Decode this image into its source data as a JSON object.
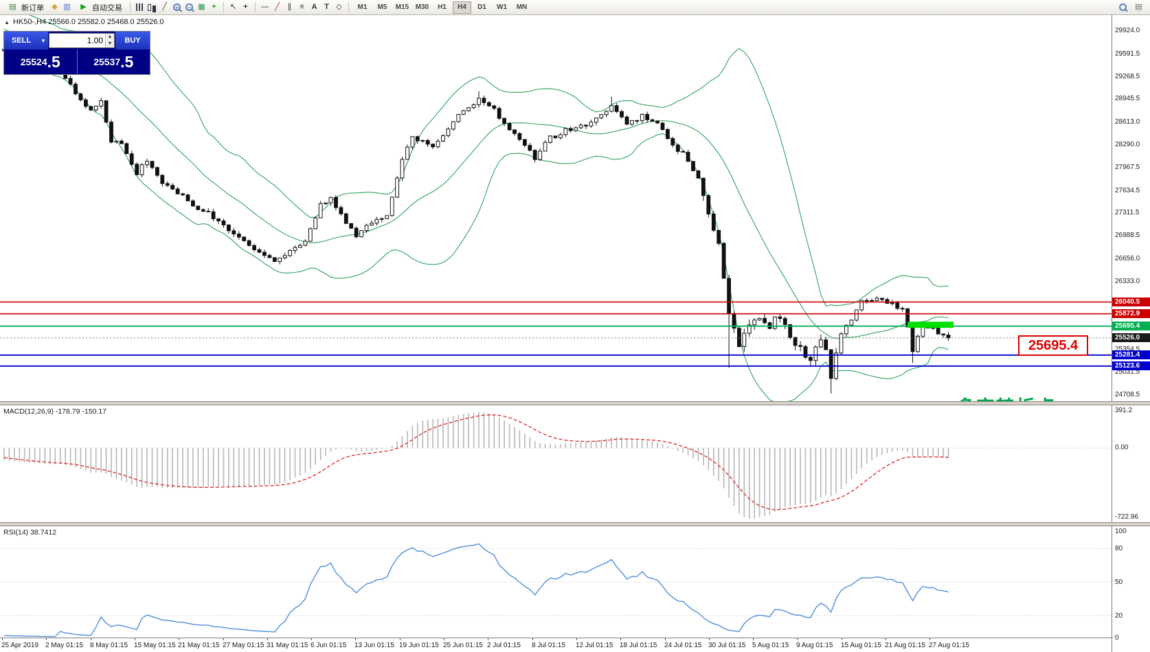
{
  "toolbar": {
    "new_order_label": "新订单",
    "autotrade_label": "自动交易",
    "timeframes": [
      "M1",
      "M5",
      "M15",
      "M30",
      "H1",
      "H4",
      "D1",
      "W1",
      "MN"
    ],
    "active_timeframe": "H4"
  },
  "chart": {
    "title": "HK50-,H4 25566.0 25582.0 25468.0 25526.0",
    "symbol": "HK50-",
    "period": "H4",
    "open": "25566.0",
    "high": "25582.0",
    "low": "25468.0",
    "close": "25526.0"
  },
  "trade_panel": {
    "sell_label": "SELL",
    "buy_label": "BUY",
    "volume": "1.00",
    "sell_price_main": "25524",
    "sell_price_frac": ".5",
    "buy_price_main": "25537",
    "buy_price_frac": ".5"
  },
  "price_axis": {
    "ticks": [
      "29924.0",
      "29591.5",
      "29268.5",
      "28945.5",
      "28613.0",
      "28290.0",
      "27967.5",
      "27634.5",
      "27311.5",
      "26988.5",
      "26656.0",
      "26333.0",
      "25354.5",
      "25031.5",
      "24708.5"
    ],
    "lines": [
      {
        "price": 26040.5,
        "label": "26040.5",
        "color": "#cc0000",
        "width": 1.6
      },
      {
        "price": 25872.9,
        "label": "25872.9",
        "color": "#cc0000",
        "width": 1.6
      },
      {
        "price": 25695.4,
        "label": "25695.4",
        "color": "#00b050",
        "width": 1.8
      },
      {
        "price": 25281.4,
        "label": "25281.4",
        "color": "#0000cc",
        "width": 1.8
      },
      {
        "price": 25123.6,
        "label": "25123.6",
        "color": "#0000cc",
        "width": 1.8
      }
    ],
    "current": {
      "price": 25526.0,
      "label": "25526.0",
      "color": "#1a1a1a"
    }
  },
  "annotations": {
    "big_price_label": "25695.4",
    "big_price_color": "#e00000",
    "turning_point_text": "多空转折点",
    "turning_point_color": "#00a74a",
    "green_segment": {
      "price": 25695.4,
      "from_candle": 177,
      "to_candle": 186,
      "color": "#00e000"
    }
  },
  "macd": {
    "label": "MACD(12,26,9) -178.79 -150.17",
    "axis_max": "391.2",
    "axis_zero": "0.00",
    "axis_min": "-722.96"
  },
  "rsi": {
    "label": "RSI(14) 38.7412",
    "axis": [
      "100",
      "80",
      "50",
      "20",
      "0"
    ],
    "levels": [
      80,
      50,
      20
    ]
  },
  "time_axis": [
    "25 Apr 2019",
    "2 May 01:15",
    "8 May 01:15",
    "15 May 01:15",
    "21 May 01:15",
    "27 May 01:15",
    "31 May 01:15",
    "6 Jun 01:15",
    "13 Jun 01:15",
    "19 Jun 01:15",
    "25 Jun 01:15",
    "2 Jul 01:15",
    "8 Jul 01:15",
    "12 Jul 01:15",
    "18 Jul 01:15",
    "24 Jul 01:15",
    "30 Jul 01:15",
    "5 Aug 01:15",
    "9 Aug 01:15",
    "15 Aug 01:15",
    "21 Aug 01:15",
    "27 Aug 01:15"
  ],
  "chart_data": {
    "type": "candlestick",
    "symbol": "HK50",
    "timeframe": "H4",
    "price_range": [
      24620,
      30150
    ],
    "candle_count": 186,
    "last_close": 25526.0,
    "close_anchors": [
      [
        0,
        29620
      ],
      [
        6,
        29480
      ],
      [
        11,
        29340
      ],
      [
        14,
        29040
      ],
      [
        17,
        28760
      ],
      [
        19,
        28900
      ],
      [
        21,
        28300
      ],
      [
        23,
        28340
      ],
      [
        26,
        27880
      ],
      [
        28,
        28080
      ],
      [
        31,
        27760
      ],
      [
        34,
        27620
      ],
      [
        37,
        27400
      ],
      [
        40,
        27310
      ],
      [
        43,
        27120
      ],
      [
        46,
        26960
      ],
      [
        50,
        26760
      ],
      [
        53,
        26630
      ],
      [
        56,
        26790
      ],
      [
        59,
        26900
      ],
      [
        62,
        27440
      ],
      [
        64,
        27540
      ],
      [
        67,
        27160
      ],
      [
        69,
        26990
      ],
      [
        72,
        27190
      ],
      [
        75,
        27260
      ],
      [
        78,
        28080
      ],
      [
        80,
        28410
      ],
      [
        84,
        28260
      ],
      [
        87,
        28540
      ],
      [
        90,
        28790
      ],
      [
        93,
        28940
      ],
      [
        96,
        28800
      ],
      [
        99,
        28510
      ],
      [
        102,
        28260
      ],
      [
        104,
        28110
      ],
      [
        107,
        28390
      ],
      [
        110,
        28500
      ],
      [
        113,
        28550
      ],
      [
        116,
        28650
      ],
      [
        119,
        28840
      ],
      [
        122,
        28610
      ],
      [
        125,
        28700
      ],
      [
        128,
        28600
      ],
      [
        130,
        28360
      ],
      [
        133,
        28160
      ],
      [
        136,
        27820
      ],
      [
        138,
        27320
      ],
      [
        140,
        26870
      ],
      [
        141,
        26420
      ],
      [
        142,
        25920
      ],
      [
        144,
        25430
      ],
      [
        146,
        25740
      ],
      [
        148,
        25810
      ],
      [
        150,
        25710
      ],
      [
        152,
        25850
      ],
      [
        154,
        25560
      ],
      [
        156,
        25360
      ],
      [
        158,
        25210
      ],
      [
        160,
        25490
      ],
      [
        161,
        25310
      ],
      [
        162,
        24960
      ],
      [
        164,
        25590
      ],
      [
        166,
        25800
      ],
      [
        168,
        26040
      ],
      [
        171,
        26110
      ],
      [
        174,
        26010
      ],
      [
        176,
        25950
      ],
      [
        178,
        25360
      ],
      [
        180,
        25740
      ],
      [
        182,
        25660
      ],
      [
        184,
        25560
      ],
      [
        185,
        25526
      ]
    ],
    "wick_overrides": {
      "93": {
        "high": 29060
      },
      "119": {
        "high": 28980
      },
      "142": {
        "low": 25100
      },
      "162": {
        "low": 24730
      },
      "178": {
        "low": 25170
      }
    },
    "indicators": {
      "bollinger": {
        "period": 20,
        "deviation": 2
      },
      "macd": {
        "fast": 12,
        "slow": 26,
        "signal": 9
      },
      "rsi": {
        "period": 14
      }
    }
  }
}
